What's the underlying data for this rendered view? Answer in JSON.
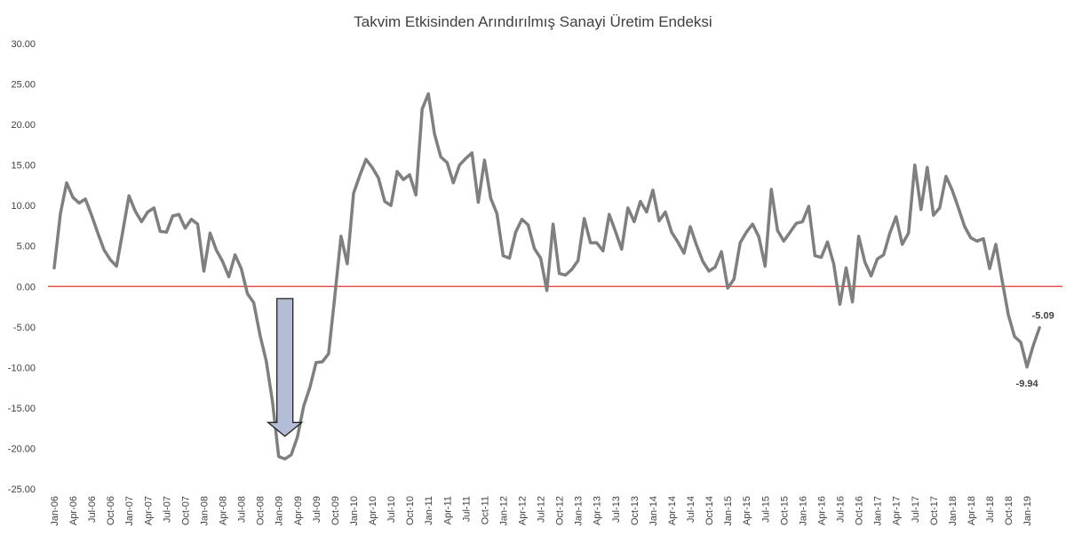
{
  "chart_data": {
    "type": "line",
    "title": "Takvim Etkisinden Arındırılmış Sanayi Üretim Endeksi",
    "xlabel": "",
    "ylabel": "",
    "ylim": [
      -25,
      30
    ],
    "ytick_step": 5,
    "ytick_labels": [
      "30.00",
      "25.00",
      "20.00",
      "15.00",
      "10.00",
      "5.00",
      "0.00",
      "-5.00",
      "-10.00",
      "-15.00",
      "-20.00",
      "-25.00"
    ],
    "grid": false,
    "legend": "none",
    "start": "2006-01",
    "x_tick_labels": [
      "Jan-06",
      "Apr-06",
      "Jul-06",
      "Oct-06",
      "Jan-07",
      "Apr-07",
      "Jul-07",
      "Oct-07",
      "Jan-08",
      "Apr-08",
      "Jul-08",
      "Oct-08",
      "Jan-09",
      "Apr-09",
      "Jul-09",
      "Oct-09",
      "Jan-10",
      "Apr-10",
      "Jul-10",
      "Oct-10",
      "Jan-11",
      "Apr-11",
      "Jul-11",
      "Oct-11",
      "Jan-12",
      "Apr-12",
      "Jul-12",
      "Oct-12",
      "Jan-13",
      "Apr-13",
      "Jul-13",
      "Oct-13",
      "Jan-14",
      "Apr-14",
      "Jul-14",
      "Oct-14",
      "Jan-15",
      "Apr-15",
      "Jul-15",
      "Oct-15",
      "Jan-16",
      "Apr-16",
      "Jul-16",
      "Oct-16",
      "Jan-17",
      "Apr-17",
      "Jul-17",
      "Oct-17",
      "Jan-18",
      "Apr-18",
      "Jul-18",
      "Oct-18",
      "Jan-19"
    ],
    "series": [
      {
        "values": [
          2.3,
          9.0,
          12.8,
          11.0,
          10.3,
          10.8,
          8.8,
          6.6,
          4.5,
          3.3,
          2.5,
          6.8,
          11.2,
          9.3,
          8.0,
          9.2,
          9.7,
          6.8,
          6.7,
          8.7,
          8.9,
          7.2,
          8.3,
          7.7,
          1.9,
          6.6,
          4.5,
          3.1,
          1.2,
          3.9,
          2.2,
          -0.9,
          -2.0,
          -6.0,
          -9.2,
          -14.2,
          -21.0,
          -21.3,
          -20.8,
          -18.6,
          -14.8,
          -12.5,
          -9.4,
          -9.3,
          -8.3,
          -1.2,
          6.2,
          2.8,
          11.5,
          13.7,
          15.7,
          14.7,
          13.4,
          10.5,
          10.0,
          14.2,
          13.2,
          13.8,
          11.3,
          21.9,
          23.8,
          18.8,
          16.0,
          15.3,
          12.8,
          15.0,
          15.8,
          16.5,
          10.4,
          15.6,
          10.9,
          9.0,
          3.8,
          3.5,
          6.7,
          8.3,
          7.6,
          4.7,
          3.5,
          -0.5,
          7.7,
          1.6,
          1.4,
          2.1,
          3.2,
          8.4,
          5.4,
          5.4,
          4.4,
          8.9,
          6.8,
          4.6,
          9.7,
          8.0,
          10.5,
          9.2,
          11.9,
          8.1,
          9.2,
          6.7,
          5.5,
          4.1,
          7.4,
          5.1,
          3.1,
          1.9,
          2.4,
          4.3,
          -0.2,
          0.9,
          5.4,
          6.7,
          7.7,
          6.1,
          2.5,
          12.0,
          6.9,
          5.6,
          6.7,
          7.8,
          8.0,
          9.9,
          3.8,
          3.6,
          5.5,
          2.8,
          -2.2,
          2.3,
          -1.9,
          6.2,
          3.0,
          1.3,
          3.4,
          3.9,
          6.6,
          8.6,
          5.2,
          6.6,
          15.0,
          9.5,
          14.7,
          8.8,
          9.7,
          13.6,
          11.9,
          9.7,
          7.4,
          6.0,
          5.6,
          5.9,
          2.2,
          5.2,
          0.8,
          -3.5,
          -6.2,
          -6.9,
          -9.94,
          -7.3,
          -5.09
        ]
      }
    ],
    "data_labels": [
      "-9.94",
      "-5.09"
    ],
    "reference_line": {
      "y": 0,
      "color": "#e8322e"
    },
    "colors": {
      "series": "#7f7f7f",
      "zero_line": "#e8322e",
      "arrow_fill": "#b4bdd6",
      "arrow_stroke": "#222222"
    },
    "annotation": {
      "type": "down-arrow",
      "from_y": -1.5,
      "to_y": -18.5,
      "at": "Jan-09"
    }
  }
}
